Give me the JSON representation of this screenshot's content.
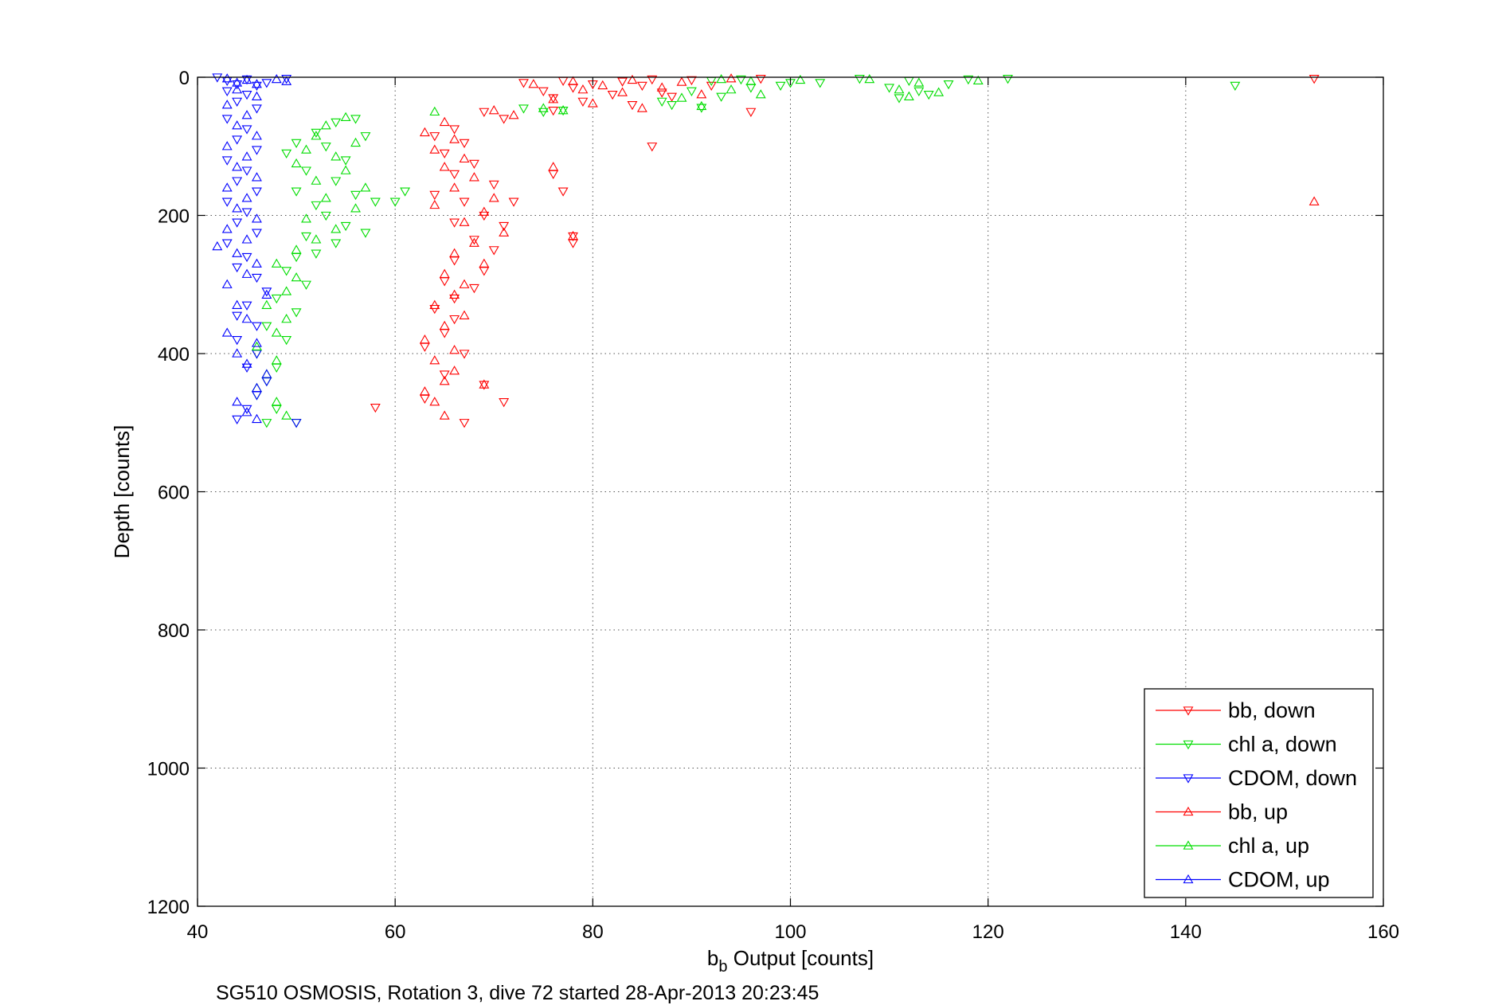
{
  "chart_data": {
    "type": "scatter",
    "xlabel": "b",
    "xlabel_subscript": "b",
    "xlabel_rest": " Output [counts]",
    "ylabel": "Depth [counts]",
    "caption": "SG510 OSMOSIS, Rotation 3, dive 72 started 28-Apr-2013 20:23:45",
    "xlim": [
      40,
      160
    ],
    "ylim": [
      0,
      1200
    ],
    "y_reversed": true,
    "grid": true,
    "legend_position": "bottom-right",
    "x_ticks": [
      40,
      60,
      80,
      100,
      120,
      140,
      160
    ],
    "y_ticks": [
      0,
      200,
      400,
      600,
      800,
      1000,
      1200
    ],
    "series": [
      {
        "name": "bb, down",
        "color": "#ff0000",
        "marker": "triangle-down",
        "points": [
          [
            73,
            8
          ],
          [
            77,
            5
          ],
          [
            80,
            10
          ],
          [
            83,
            6
          ],
          [
            86,
            3
          ],
          [
            90,
            4
          ],
          [
            97,
            2
          ],
          [
            153,
            2
          ],
          [
            75,
            20
          ],
          [
            78,
            15
          ],
          [
            82,
            25
          ],
          [
            85,
            12
          ],
          [
            88,
            28
          ],
          [
            76,
            30
          ],
          [
            79,
            35
          ],
          [
            84,
            40
          ],
          [
            87,
            22
          ],
          [
            92,
            12
          ],
          [
            96,
            50
          ],
          [
            69,
            50
          ],
          [
            71,
            60
          ],
          [
            66,
            75
          ],
          [
            64,
            85
          ],
          [
            67,
            95
          ],
          [
            65,
            110
          ],
          [
            68,
            125
          ],
          [
            66,
            140
          ],
          [
            70,
            155
          ],
          [
            64,
            170
          ],
          [
            67,
            180
          ],
          [
            72,
            180
          ],
          [
            69,
            200
          ],
          [
            66,
            210
          ],
          [
            71,
            215
          ],
          [
            68,
            235
          ],
          [
            70,
            250
          ],
          [
            66,
            265
          ],
          [
            69,
            280
          ],
          [
            65,
            295
          ],
          [
            68,
            305
          ],
          [
            66,
            320
          ],
          [
            64,
            335
          ],
          [
            66,
            350
          ],
          [
            65,
            370
          ],
          [
            63,
            390
          ],
          [
            67,
            400
          ],
          [
            65,
            430
          ],
          [
            63,
            465
          ],
          [
            58,
            478
          ],
          [
            67,
            500
          ],
          [
            69,
            445
          ],
          [
            71,
            470
          ],
          [
            76,
            140
          ],
          [
            77,
            165
          ],
          [
            78,
            230
          ],
          [
            78,
            240
          ],
          [
            86,
            100
          ],
          [
            76,
            48
          ]
        ]
      },
      {
        "name": "chl a, down",
        "color": "#00dd00",
        "marker": "triangle-down",
        "points": [
          [
            92,
            5
          ],
          [
            95,
            3
          ],
          [
            100,
            8
          ],
          [
            107,
            2
          ],
          [
            112,
            5
          ],
          [
            118,
            3
          ],
          [
            122,
            2
          ],
          [
            145,
            12
          ],
          [
            110,
            15
          ],
          [
            113,
            20
          ],
          [
            116,
            10
          ],
          [
            111,
            30
          ],
          [
            114,
            25
          ],
          [
            90,
            20
          ],
          [
            93,
            28
          ],
          [
            96,
            15
          ],
          [
            88,
            40
          ],
          [
            99,
            12
          ],
          [
            103,
            8
          ],
          [
            91,
            44
          ],
          [
            87,
            35
          ],
          [
            77,
            48
          ],
          [
            73,
            45
          ],
          [
            75,
            50
          ],
          [
            56,
            60
          ],
          [
            54,
            65
          ],
          [
            52,
            80
          ],
          [
            57,
            85
          ],
          [
            50,
            95
          ],
          [
            53,
            100
          ],
          [
            49,
            110
          ],
          [
            55,
            120
          ],
          [
            51,
            135
          ],
          [
            54,
            150
          ],
          [
            50,
            165
          ],
          [
            56,
            170
          ],
          [
            52,
            185
          ],
          [
            58,
            180
          ],
          [
            60,
            180
          ],
          [
            61,
            165
          ],
          [
            53,
            200
          ],
          [
            55,
            215
          ],
          [
            51,
            230
          ],
          [
            57,
            225
          ],
          [
            54,
            240
          ],
          [
            50,
            260
          ],
          [
            52,
            255
          ],
          [
            49,
            280
          ],
          [
            51,
            300
          ],
          [
            48,
            320
          ],
          [
            50,
            340
          ],
          [
            47,
            360
          ],
          [
            49,
            380
          ],
          [
            46,
            400
          ],
          [
            48,
            420
          ],
          [
            47,
            440
          ],
          [
            46,
            460
          ],
          [
            48,
            480
          ],
          [
            47,
            500
          ],
          [
            50,
            500
          ]
        ]
      },
      {
        "name": "CDOM, down",
        "color": "#0000ff",
        "marker": "triangle-down",
        "points": [
          [
            42,
            0
          ],
          [
            43,
            5
          ],
          [
            44,
            10
          ],
          [
            45,
            3
          ],
          [
            46,
            12
          ],
          [
            47,
            8
          ],
          [
            49,
            2
          ],
          [
            43,
            20
          ],
          [
            45,
            25
          ],
          [
            44,
            35
          ],
          [
            46,
            45
          ],
          [
            43,
            60
          ],
          [
            45,
            75
          ],
          [
            44,
            90
          ],
          [
            46,
            105
          ],
          [
            43,
            120
          ],
          [
            45,
            135
          ],
          [
            44,
            150
          ],
          [
            46,
            165
          ],
          [
            43,
            180
          ],
          [
            45,
            195
          ],
          [
            44,
            210
          ],
          [
            46,
            225
          ],
          [
            43,
            240
          ],
          [
            45,
            260
          ],
          [
            44,
            275
          ],
          [
            46,
            290
          ],
          [
            47,
            310
          ],
          [
            45,
            330
          ],
          [
            44,
            345
          ],
          [
            46,
            360
          ],
          [
            44,
            380
          ],
          [
            46,
            400
          ],
          [
            45,
            420
          ],
          [
            47,
            440
          ],
          [
            46,
            460
          ],
          [
            45,
            480
          ],
          [
            44,
            495
          ],
          [
            50,
            500
          ]
        ]
      },
      {
        "name": "bb, up",
        "color": "#ff0000",
        "marker": "triangle-up",
        "points": [
          [
            74,
            10
          ],
          [
            78,
            6
          ],
          [
            81,
            12
          ],
          [
            84,
            4
          ],
          [
            89,
            7
          ],
          [
            94,
            2
          ],
          [
            79,
            18
          ],
          [
            83,
            22
          ],
          [
            87,
            15
          ],
          [
            91,
            25
          ],
          [
            76,
            32
          ],
          [
            80,
            38
          ],
          [
            85,
            45
          ],
          [
            70,
            48
          ],
          [
            72,
            55
          ],
          [
            65,
            65
          ],
          [
            63,
            80
          ],
          [
            66,
            90
          ],
          [
            64,
            105
          ],
          [
            67,
            118
          ],
          [
            65,
            130
          ],
          [
            68,
            145
          ],
          [
            66,
            160
          ],
          [
            70,
            175
          ],
          [
            64,
            185
          ],
          [
            69,
            195
          ],
          [
            67,
            210
          ],
          [
            71,
            225
          ],
          [
            68,
            240
          ],
          [
            66,
            255
          ],
          [
            69,
            270
          ],
          [
            65,
            285
          ],
          [
            67,
            300
          ],
          [
            66,
            315
          ],
          [
            64,
            330
          ],
          [
            67,
            345
          ],
          [
            65,
            360
          ],
          [
            63,
            380
          ],
          [
            66,
            395
          ],
          [
            64,
            410
          ],
          [
            66,
            425
          ],
          [
            65,
            440
          ],
          [
            63,
            455
          ],
          [
            64,
            470
          ],
          [
            65,
            490
          ],
          [
            69,
            445
          ],
          [
            153,
            180
          ],
          [
            76,
            130
          ],
          [
            78,
            230
          ]
        ]
      },
      {
        "name": "chl a, up",
        "color": "#00dd00",
        "marker": "triangle-up",
        "points": [
          [
            93,
            3
          ],
          [
            96,
            6
          ],
          [
            101,
            4
          ],
          [
            108,
            3
          ],
          [
            113,
            8
          ],
          [
            119,
            5
          ],
          [
            111,
            18
          ],
          [
            115,
            22
          ],
          [
            112,
            28
          ],
          [
            94,
            18
          ],
          [
            97,
            25
          ],
          [
            89,
            30
          ],
          [
            91,
            42
          ],
          [
            77,
            48
          ],
          [
            75,
            45
          ],
          [
            64,
            50
          ],
          [
            55,
            58
          ],
          [
            53,
            70
          ],
          [
            52,
            85
          ],
          [
            56,
            95
          ],
          [
            51,
            105
          ],
          [
            54,
            115
          ],
          [
            50,
            125
          ],
          [
            55,
            135
          ],
          [
            52,
            150
          ],
          [
            57,
            160
          ],
          [
            53,
            175
          ],
          [
            56,
            190
          ],
          [
            51,
            205
          ],
          [
            54,
            220
          ],
          [
            52,
            235
          ],
          [
            50,
            250
          ],
          [
            48,
            270
          ],
          [
            50,
            290
          ],
          [
            49,
            310
          ],
          [
            47,
            330
          ],
          [
            49,
            350
          ],
          [
            48,
            370
          ],
          [
            46,
            390
          ],
          [
            48,
            410
          ],
          [
            47,
            430
          ],
          [
            46,
            450
          ],
          [
            48,
            470
          ],
          [
            49,
            490
          ]
        ]
      },
      {
        "name": "CDOM, up",
        "color": "#0000ff",
        "marker": "triangle-up",
        "points": [
          [
            43,
            2
          ],
          [
            44,
            8
          ],
          [
            45,
            4
          ],
          [
            46,
            10
          ],
          [
            48,
            3
          ],
          [
            49,
            6
          ],
          [
            44,
            18
          ],
          [
            46,
            28
          ],
          [
            43,
            40
          ],
          [
            45,
            55
          ],
          [
            44,
            70
          ],
          [
            46,
            85
          ],
          [
            43,
            100
          ],
          [
            45,
            115
          ],
          [
            44,
            130
          ],
          [
            46,
            145
          ],
          [
            43,
            160
          ],
          [
            45,
            175
          ],
          [
            44,
            190
          ],
          [
            46,
            205
          ],
          [
            43,
            220
          ],
          [
            42,
            245
          ],
          [
            45,
            235
          ],
          [
            44,
            255
          ],
          [
            46,
            270
          ],
          [
            45,
            285
          ],
          [
            43,
            300
          ],
          [
            47,
            315
          ],
          [
            44,
            330
          ],
          [
            45,
            350
          ],
          [
            43,
            370
          ],
          [
            46,
            385
          ],
          [
            44,
            400
          ],
          [
            45,
            415
          ],
          [
            47,
            430
          ],
          [
            46,
            450
          ],
          [
            44,
            470
          ],
          [
            45,
            485
          ],
          [
            46,
            495
          ]
        ]
      }
    ]
  }
}
